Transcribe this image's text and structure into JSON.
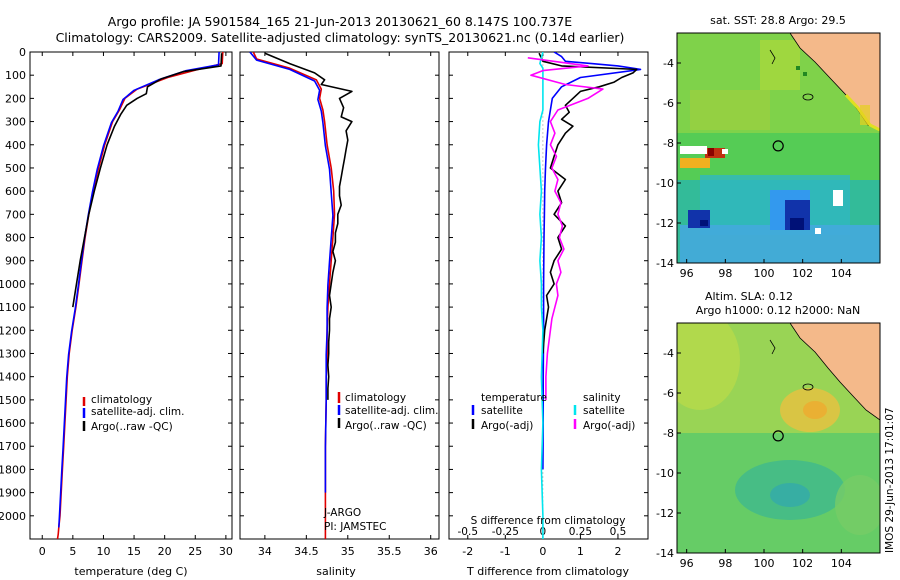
{
  "title": {
    "line1": "Argo profile: JA 5901584_165 21-Jun-2013 20130621_60 8.147S 100.737E",
    "line2": "Climatology: CARS2009. Satellite-adjusted climatology: synTS_20130621.nc (0.14d earlier)"
  },
  "colors": {
    "climatology": "#e00000",
    "satellite": "#0000ff",
    "argo": "#000000",
    "salinity_sat": "#00e5ee",
    "salinity_argo": "#ff00ff"
  },
  "chart_data": [
    {
      "type": "line",
      "panel": "temperature",
      "xlabel": "temperature (deg C)",
      "ylabel": "",
      "xlim": [
        -2,
        31
      ],
      "ylim": [
        2100,
        0
      ],
      "xticks": [
        0,
        5,
        10,
        15,
        20,
        25,
        30
      ],
      "yticks": [
        0,
        100,
        200,
        300,
        400,
        500,
        600,
        700,
        800,
        900,
        1000,
        1100,
        1200,
        1300,
        1400,
        1500,
        1600,
        1700,
        1800,
        1900,
        2000
      ],
      "legend": [
        "climatology",
        "satellite-adj. clim.",
        "Argo(..raw -QC)"
      ],
      "series": [
        {
          "name": "climatology",
          "x": [
            29.5,
            29.4,
            25.5,
            20.5,
            15.5,
            13.5,
            12.6,
            11.5,
            10.2,
            9.2,
            8.3,
            7.6,
            7.0,
            6.5,
            6.0,
            5.5,
            4.9,
            4.4,
            4.1,
            3.9,
            3.7,
            3.5,
            3.3,
            3.1,
            2.9,
            2.7,
            2.6,
            2.5
          ],
          "y": [
            0,
            50,
            75,
            110,
            160,
            200,
            250,
            300,
            400,
            500,
            600,
            700,
            800,
            900,
            1000,
            1100,
            1200,
            1300,
            1400,
            1500,
            1600,
            1700,
            1800,
            1900,
            2000,
            2050,
            2080,
            2100
          ]
        },
        {
          "name": "satellite-adj. clim.",
          "x": [
            28.9,
            28.8,
            23.5,
            19.0,
            15.0,
            13.2,
            12.4,
            11.3,
            10.0,
            9.0,
            8.2,
            7.5,
            6.9,
            6.4,
            5.9,
            5.4,
            4.8,
            4.3,
            4.0,
            3.8,
            3.6,
            3.4,
            3.2,
            3.0,
            2.8,
            2.7
          ],
          "y": [
            0,
            55,
            80,
            120,
            165,
            205,
            255,
            305,
            405,
            505,
            605,
            705,
            805,
            905,
            1005,
            1105,
            1205,
            1305,
            1405,
            1505,
            1605,
            1705,
            1805,
            1905,
            2005,
            2050
          ]
        },
        {
          "name": "Argo(..raw -QC)",
          "x": [
            29.3,
            29.2,
            23.0,
            19.5,
            17.2,
            17.0,
            15.5,
            13.8,
            12.8,
            11.8,
            10.6,
            9.5,
            8.5,
            7.6,
            6.9,
            6.2,
            5.6,
            5.0
          ],
          "y": [
            5,
            60,
            85,
            115,
            150,
            180,
            200,
            230,
            270,
            320,
            400,
            500,
            600,
            700,
            800,
            900,
            1000,
            1100
          ]
        }
      ]
    },
    {
      "type": "line",
      "panel": "salinity",
      "xlabel": "salinity",
      "xlim": [
        33.7,
        36.1
      ],
      "ylim": [
        2100,
        0
      ],
      "xticks": [
        34,
        34.5,
        35,
        35.5,
        36
      ],
      "legend": [
        "climatology",
        "satellite-adj. clim.",
        "Argo(..raw -QC)"
      ],
      "annotations": [
        "J-ARGO",
        "PI: JAMSTEC"
      ],
      "series": [
        {
          "name": "climatology",
          "x": [
            33.86,
            33.9,
            34.3,
            34.62,
            34.68,
            34.66,
            34.7,
            34.72,
            34.75,
            34.8,
            34.83,
            34.84,
            34.82,
            34.8,
            34.78,
            34.76,
            34.75,
            34.75,
            34.74,
            34.74,
            34.73,
            34.73,
            34.73
          ],
          "y": [
            0,
            30,
            70,
            120,
            160,
            200,
            250,
            300,
            400,
            500,
            600,
            700,
            800,
            900,
            1000,
            1100,
            1200,
            1300,
            1400,
            1500,
            1700,
            1900,
            2100
          ]
        },
        {
          "name": "satellite-adj. clim.",
          "x": [
            33.82,
            33.9,
            34.3,
            34.6,
            34.66,
            34.64,
            34.68,
            34.7,
            34.73,
            34.78,
            34.8,
            34.82,
            34.8,
            34.78,
            34.76,
            34.75,
            34.75,
            34.74,
            34.74,
            34.73,
            34.73
          ],
          "y": [
            0,
            35,
            75,
            125,
            165,
            205,
            255,
            305,
            405,
            505,
            605,
            705,
            805,
            905,
            1005,
            1105,
            1205,
            1305,
            1505,
            1705,
            1900
          ]
        },
        {
          "name": "Argo(..raw -QC)",
          "x": [
            34.0,
            34.3,
            34.6,
            34.72,
            34.68,
            35.05,
            34.9,
            34.95,
            34.92,
            35.05,
            34.98,
            35.0,
            34.98,
            34.96,
            34.94,
            34.92,
            34.9,
            34.9,
            34.92,
            34.88,
            34.88,
            34.85,
            34.85,
            34.82,
            34.85,
            34.82,
            34.8,
            34.78,
            34.8,
            34.78,
            34.78,
            34.77,
            34.77,
            34.76,
            34.77,
            34.76,
            34.76
          ],
          "y": [
            5,
            50,
            90,
            120,
            140,
            170,
            200,
            240,
            280,
            300,
            340,
            380,
            420,
            460,
            500,
            540,
            580,
            620,
            660,
            700,
            740,
            780,
            820,
            860,
            900,
            950,
            1000,
            1050,
            1100,
            1150,
            1200,
            1250,
            1300,
            1350,
            1400,
            1450,
            1500
          ]
        }
      ]
    },
    {
      "type": "line",
      "panel": "difference",
      "xlabel": "T difference from climatology",
      "xlabel_secondary": "S difference from climatology",
      "xlim": [
        -2.5,
        2.8
      ],
      "ylim": [
        2100,
        0
      ],
      "xticks": [
        -2,
        -1,
        0,
        1,
        2
      ],
      "xticks_secondary": [
        -0.5,
        -0.25,
        0,
        0.25,
        0.5
      ],
      "legend_headers": [
        "temperature",
        "salinity"
      ],
      "legend": [
        "satellite",
        "Argo(-adj)",
        "satellite",
        "Argo(-adj)"
      ],
      "series": [
        {
          "name": "temperature satellite",
          "x": [
            0.3,
            0.5,
            0.6,
            1.3,
            2.0,
            2.6,
            1.0,
            0.5,
            0.25,
            0.15,
            0.1,
            0.07,
            0.05,
            0.04,
            0.03,
            0.02,
            0.02,
            0.01,
            0.01,
            0.0
          ],
          "y": [
            0,
            20,
            40,
            50,
            60,
            75,
            110,
            150,
            200,
            300,
            400,
            500,
            600,
            700,
            800,
            1000,
            1200,
            1400,
            1600,
            1800
          ]
        },
        {
          "name": "temperature Argo(-adj)",
          "x": [
            -0.1,
            0.0,
            0.5,
            2.5,
            2.4,
            2.1,
            1.9,
            1.5,
            1.0,
            0.8,
            0.6,
            0.7,
            0.5,
            0.8,
            0.6,
            0.4,
            0.3,
            0.2,
            0.6,
            0.4,
            0.5,
            0.3,
            0.6,
            0.4,
            0.5,
            0.3,
            0.2,
            0.3,
            0.1,
            0.15,
            0.1,
            0.05,
            0.0
          ],
          "y": [
            5,
            40,
            60,
            75,
            90,
            110,
            130,
            150,
            170,
            200,
            230,
            260,
            290,
            320,
            350,
            400,
            450,
            500,
            550,
            600,
            650,
            700,
            750,
            800,
            850,
            900,
            950,
            1000,
            1050,
            1100,
            1150,
            1200,
            1300
          ]
        },
        {
          "name": "salinity satellite",
          "x": [
            0.0,
            -0.02,
            0.0,
            0.0,
            0.0,
            0.0,
            0.0,
            -0.02,
            -0.03,
            -0.02,
            -0.01,
            -0.02,
            -0.01,
            -0.02,
            -0.01,
            -0.01,
            0.0,
            -0.01,
            0.0,
            -0.01,
            0.0,
            0.0
          ],
          "y": [
            0,
            50,
            70,
            100,
            150,
            200,
            250,
            300,
            400,
            500,
            600,
            700,
            800,
            900,
            1000,
            1100,
            1200,
            1400,
            1600,
            1800,
            2000,
            2100
          ]
        },
        {
          "name": "salinity Argo(-adj)",
          "x": [
            -0.1,
            0.3,
            0.0,
            -0.08,
            0.15,
            0.4,
            0.3,
            0.1,
            0.05,
            0.08,
            0.05,
            0.09,
            0.06,
            0.1,
            0.08,
            0.12,
            0.1,
            0.13,
            0.11,
            0.14,
            0.1,
            0.12,
            0.09,
            0.1,
            0.08,
            0.06,
            0.05,
            0.04,
            0.03,
            0.02,
            0.02
          ],
          "y": [
            25,
            60,
            80,
            100,
            140,
            160,
            200,
            250,
            300,
            350,
            400,
            450,
            500,
            550,
            600,
            650,
            700,
            750,
            800,
            850,
            900,
            950,
            1000,
            1050,
            1100,
            1150,
            1200,
            1250,
            1300,
            1400,
            1500
          ]
        }
      ]
    },
    {
      "type": "heatmap",
      "panel": "sst-map",
      "title": "sat. SST: 28.8 Argo: 29.5",
      "xlim": [
        95.5,
        106
      ],
      "ylim": [
        -14,
        -2.5
      ],
      "xticks": [
        96,
        98,
        100,
        102,
        104
      ],
      "yticks": [
        -4,
        -6,
        -8,
        -10,
        -12,
        -14
      ],
      "marker": {
        "lon": 100.737,
        "lat": -8.147
      }
    },
    {
      "type": "heatmap",
      "panel": "sla-map",
      "title": "Altim. SLA: 0.12",
      "subtitle": "Argo h1000: 0.12 h2000: NaN",
      "xlim": [
        95.5,
        106
      ],
      "ylim": [
        -14,
        -2.5
      ],
      "xticks": [
        96,
        98,
        100,
        102,
        104
      ],
      "yticks": [
        -4,
        -6,
        -8,
        -10,
        -12,
        -14
      ],
      "marker": {
        "lon": 100.737,
        "lat": -8.147
      }
    }
  ],
  "watermark": "IMOS 29-Jun-2013 17:01:07"
}
